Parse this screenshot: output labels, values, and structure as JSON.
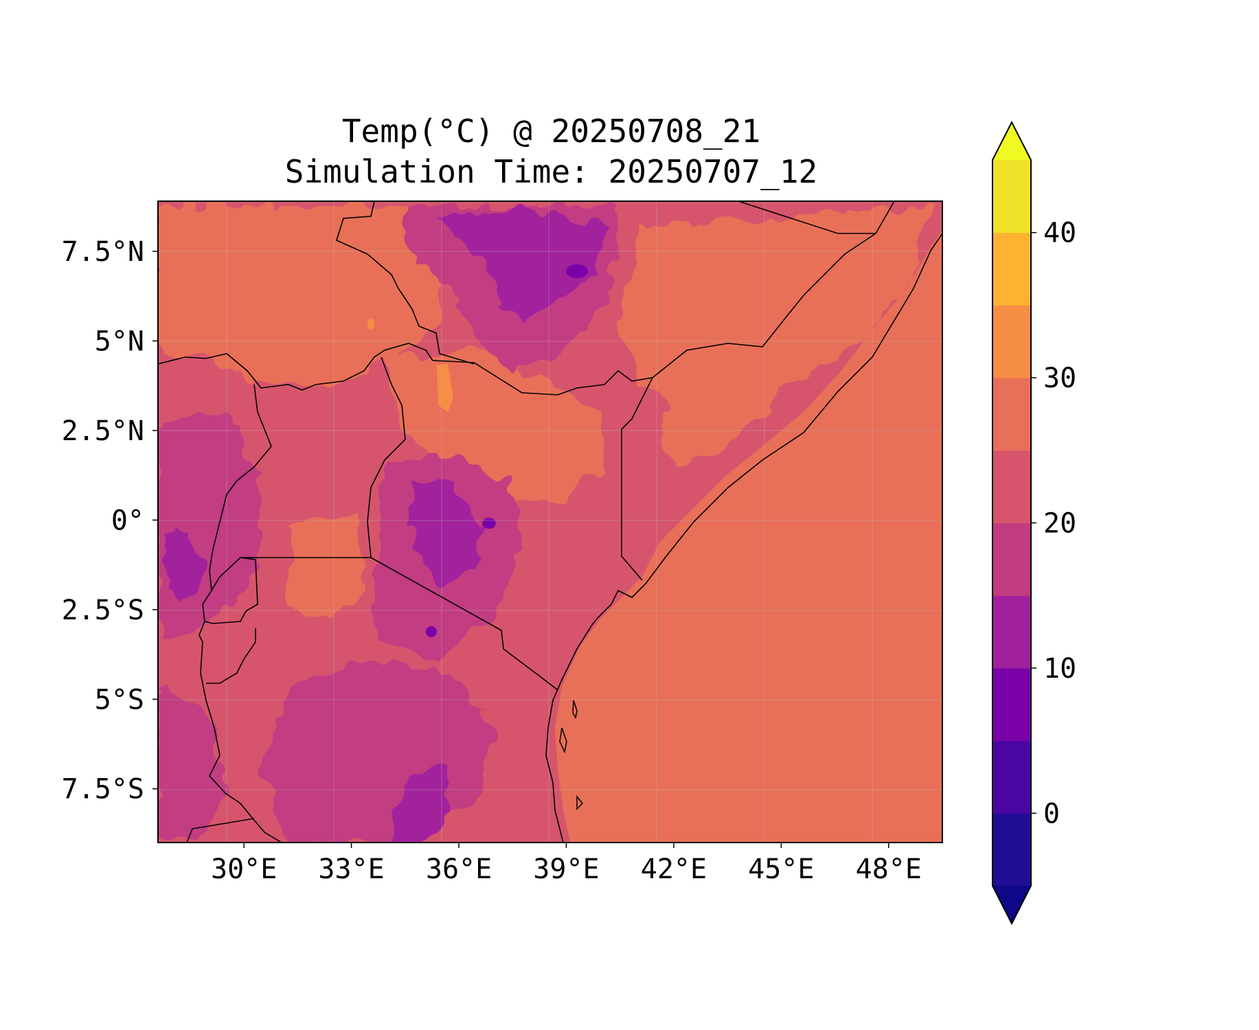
{
  "title": {
    "line1": "Temp(°C) @ 20250708_21",
    "line2": "Simulation Time: 20250707_12"
  },
  "map": {
    "type": "filled-contour map",
    "variable": "Temperature",
    "units": "°C",
    "region": "East Africa",
    "lon_range": [
      27.6,
      49.5
    ],
    "lat_range": [
      -9.0,
      8.9
    ],
    "lon_ticks": [
      "30°E",
      "33°E",
      "36°E",
      "39°E",
      "42°E",
      "45°E",
      "48°E"
    ],
    "lon_tick_values": [
      30,
      33,
      36,
      39,
      42,
      45,
      48
    ],
    "lat_ticks": [
      "7.5°N",
      "5°N",
      "2.5°N",
      "0°",
      "2.5°S",
      "5°S",
      "7.5°S"
    ],
    "lat_tick_values": [
      7.5,
      5,
      2.5,
      0,
      -2.5,
      -5,
      -7.5
    ],
    "gridlines": true,
    "coastlines": true,
    "country_borders": true
  },
  "colorbar": {
    "colormap": "plasma",
    "extend": "both",
    "levels": [
      -5,
      0,
      5,
      10,
      15,
      20,
      25,
      30,
      35,
      40,
      45
    ],
    "tick_labels": [
      "0",
      "10",
      "20",
      "30",
      "40"
    ],
    "tick_values": [
      0,
      10,
      20,
      30,
      40
    ],
    "colors": [
      "#200d95",
      "#4b05a3",
      "#7a01a8",
      "#a1219c",
      "#c23c81",
      "#d6556d",
      "#e86f58",
      "#f68e45",
      "#fdb32f",
      "#f0e129"
    ],
    "under_color": "#0d0887",
    "over_color": "#f0f921"
  }
}
